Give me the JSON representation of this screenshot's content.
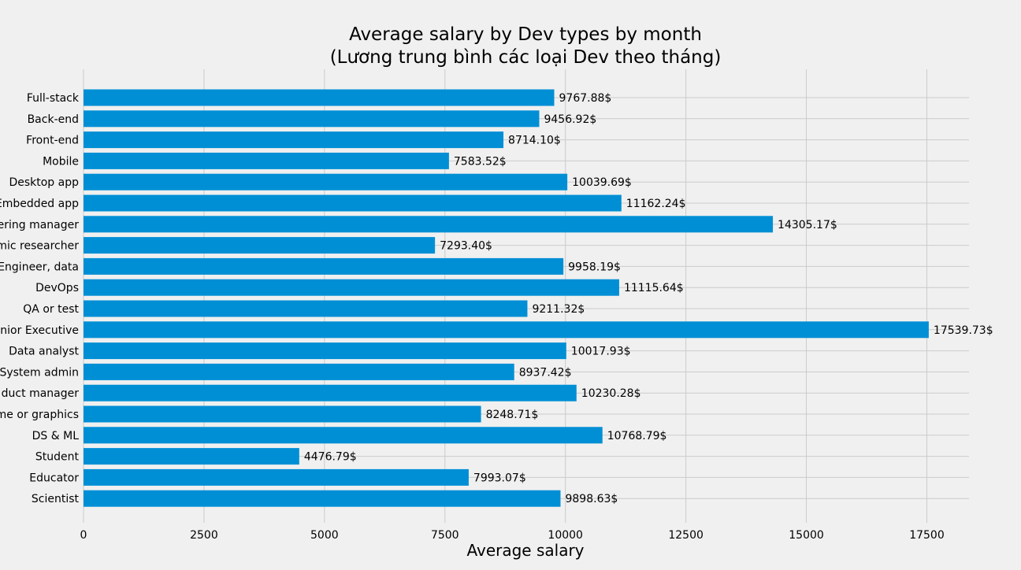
{
  "chart_data": {
    "type": "bar",
    "orientation": "horizontal",
    "title": "Average salary by Dev types by month",
    "subtitle": "(Lương trung bình các loại Dev theo tháng)",
    "xlabel": "Average salary",
    "ylabel": "",
    "xlim": [
      0,
      18375
    ],
    "xticks": [
      0,
      2500,
      5000,
      7500,
      10000,
      12500,
      15000,
      17500
    ],
    "xtick_labels": [
      "0",
      "2500",
      "5000",
      "7500",
      "10000",
      "12500",
      "15000",
      "17500"
    ],
    "grid": true,
    "bar_color": "#008fd5",
    "value_suffix": "$",
    "categories": [
      "Full-stack",
      "Back-end",
      "Front-end",
      "Mobile",
      "Desktop app",
      "Embedded app",
      "ering manager",
      "mic researcher",
      "Engineer, data",
      "DevOps",
      "QA or test",
      "nior Executive",
      "Data analyst",
      "System admin",
      "duct manager",
      "me or graphics",
      "DS & ML",
      "Student",
      "Educator",
      "Scientist"
    ],
    "values": [
      9767.88,
      9456.92,
      8714.1,
      7583.52,
      10039.69,
      11162.24,
      14305.17,
      7293.4,
      9958.19,
      11115.64,
      9211.32,
      17539.73,
      10017.93,
      8937.42,
      10230.28,
      8248.71,
      10768.79,
      4476.79,
      7993.07,
      9898.63
    ],
    "value_labels": [
      "9767.88$",
      "9456.92$",
      "8714.10$",
      "7583.52$",
      "10039.69$",
      "11162.24$",
      "14305.17$",
      "7293.40$",
      "9958.19$",
      "11115.64$",
      "9211.32$",
      "17539.73$",
      "10017.93$",
      "8937.42$",
      "10230.28$",
      "8248.71$",
      "10768.79$",
      "4476.79$",
      "7993.07$",
      "9898.63$"
    ]
  }
}
